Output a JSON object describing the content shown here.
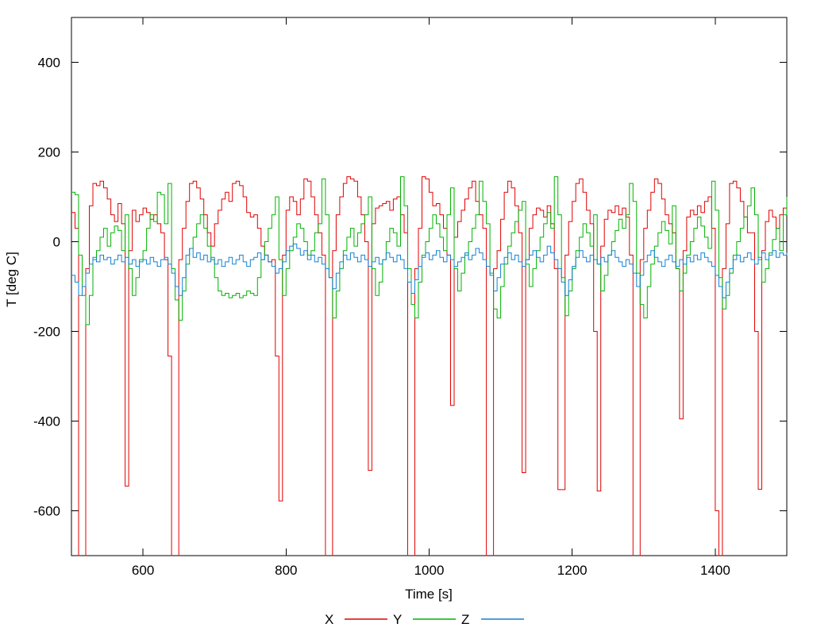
{
  "window": {
    "background": "#ffffff",
    "text_color": "#000000"
  },
  "chart_data": {
    "type": "line",
    "style": "steps",
    "title": "",
    "xlabel": "Time [s]",
    "ylabel": "T [deg C]",
    "grid": false,
    "legend_position": "bottom-center",
    "x_range": [
      500,
      1500
    ],
    "y_range": [
      -700,
      500
    ],
    "x_ticks": [
      600,
      800,
      1000,
      1200,
      1400
    ],
    "y_ticks": [
      400,
      200,
      0,
      -200,
      -400,
      -600
    ],
    "t_start": 500,
    "t_step": 5,
    "series": [
      {
        "name": "X",
        "color": "#e00000",
        "values": [
          65,
          30,
          -750,
          -750,
          -60,
          80,
          130,
          125,
          135,
          120,
          95,
          60,
          45,
          85,
          40,
          -545,
          -20,
          70,
          45,
          60,
          75,
          65,
          50,
          60,
          40,
          20,
          -40,
          -255,
          -750,
          -750,
          -40,
          30,
          90,
          130,
          135,
          120,
          95,
          60,
          20,
          -10,
          40,
          70,
          95,
          110,
          90,
          130,
          135,
          125,
          100,
          65,
          55,
          60,
          30,
          -10,
          -30,
          -45,
          -40,
          -255,
          -578,
          -30,
          70,
          100,
          90,
          60,
          95,
          140,
          135,
          100,
          60,
          20,
          -30,
          -750,
          -750,
          -20,
          60,
          100,
          130,
          145,
          140,
          135,
          100,
          60,
          0,
          -510,
          40,
          75,
          80,
          85,
          90,
          70,
          95,
          100,
          60,
          20,
          -750,
          -750,
          -60,
          30,
          145,
          140,
          110,
          80,
          85,
          60,
          30,
          -30,
          -365,
          10,
          45,
          70,
          95,
          120,
          135,
          90,
          60,
          30,
          -750,
          -750,
          -60,
          -20,
          50,
          110,
          135,
          120,
          80,
          20,
          -515,
          -40,
          30,
          60,
          75,
          70,
          55,
          80,
          40,
          -60,
          -553,
          -553,
          -30,
          45,
          90,
          130,
          140,
          110,
          70,
          40,
          -200,
          -556,
          -10,
          50,
          70,
          65,
          80,
          60,
          75,
          55,
          -30,
          -750,
          -750,
          -40,
          30,
          70,
          110,
          140,
          130,
          95,
          60,
          40,
          20,
          -60,
          -395,
          -20,
          55,
          70,
          60,
          80,
          65,
          90,
          100,
          30,
          -600,
          -730,
          -60,
          40,
          130,
          135,
          120,
          90,
          55,
          20,
          20,
          -200,
          -552,
          -20,
          45,
          70,
          55,
          30,
          60,
          75,
          75
        ]
      },
      {
        "name": "Y",
        "color": "#00b200",
        "values": [
          110,
          105,
          -30,
          -120,
          -185,
          -120,
          -40,
          -20,
          10,
          30,
          -10,
          20,
          35,
          25,
          -20,
          60,
          -60,
          -120,
          -80,
          -40,
          -20,
          30,
          60,
          45,
          110,
          105,
          40,
          130,
          -60,
          -130,
          -175,
          -110,
          -50,
          -15,
          10,
          40,
          60,
          30,
          -10,
          -40,
          -80,
          -110,
          -120,
          -115,
          -125,
          -120,
          -115,
          -125,
          -120,
          -110,
          -115,
          -120,
          -80,
          -40,
          0,
          30,
          60,
          100,
          -40,
          -120,
          -60,
          -20,
          10,
          40,
          30,
          0,
          -30,
          -20,
          20,
          40,
          140,
          60,
          -80,
          -170,
          -110,
          -60,
          -20,
          10,
          30,
          -10,
          20,
          40,
          60,
          100,
          -60,
          -120,
          -90,
          -40,
          0,
          30,
          20,
          -10,
          145,
          80,
          -60,
          -140,
          -170,
          -90,
          -30,
          0,
          30,
          60,
          40,
          10,
          -20,
          60,
          120,
          -60,
          -110,
          -70,
          -30,
          0,
          30,
          60,
          135,
          90,
          40,
          -70,
          -150,
          -170,
          -100,
          -50,
          -10,
          20,
          45,
          70,
          90,
          -50,
          -100,
          -60,
          -20,
          10,
          40,
          65,
          30,
          145,
          60,
          -80,
          -165,
          -110,
          -60,
          -20,
          10,
          40,
          20,
          -10,
          60,
          -50,
          -110,
          -75,
          -30,
          0,
          25,
          50,
          30,
          60,
          130,
          90,
          -70,
          -140,
          -170,
          -100,
          -50,
          -10,
          20,
          45,
          25,
          -5,
          80,
          -60,
          -110,
          -70,
          -30,
          0,
          30,
          55,
          35,
          10,
          -15,
          135,
          70,
          -80,
          -150,
          -120,
          -70,
          -30,
          0,
          30,
          55,
          80,
          120,
          60,
          -40,
          -90,
          -60,
          -25,
          5,
          30,
          -20,
          60,
          100
        ]
      },
      {
        "name": "Z",
        "color": "#1180d2",
        "values": [
          -75,
          -90,
          -120,
          -100,
          -70,
          -50,
          -35,
          -45,
          -30,
          -40,
          -35,
          -50,
          -40,
          -30,
          -45,
          -35,
          -50,
          -40,
          -55,
          -45,
          -40,
          -50,
          -35,
          -45,
          -55,
          -40,
          -35,
          -50,
          -70,
          -100,
          -120,
          -80,
          -30,
          -15,
          -35,
          -25,
          -40,
          -30,
          -45,
          -35,
          -50,
          -40,
          -55,
          -45,
          -35,
          -50,
          -40,
          -30,
          -45,
          -55,
          -40,
          -35,
          -25,
          -40,
          -30,
          -45,
          -55,
          -70,
          -60,
          -45,
          -20,
          -10,
          -5,
          -15,
          -30,
          -20,
          -40,
          -30,
          -45,
          -35,
          -50,
          -60,
          -80,
          -105,
          -70,
          -45,
          -30,
          -40,
          -25,
          -35,
          -45,
          -30,
          -40,
          -55,
          -45,
          -35,
          -50,
          -40,
          -25,
          -35,
          -45,
          -30,
          -40,
          -60,
          -90,
          -115,
          -85,
          -55,
          -35,
          -25,
          -40,
          -30,
          -20,
          -35,
          -45,
          -30,
          -40,
          -55,
          -45,
          -35,
          -25,
          -40,
          -30,
          -15,
          -25,
          -40,
          -55,
          -75,
          -110,
          -80,
          -50,
          -35,
          -25,
          -40,
          -30,
          -45,
          -55,
          -40,
          -30,
          -20,
          -35,
          -45,
          -30,
          -10,
          -25,
          -40,
          -60,
          -90,
          -120,
          -85,
          -55,
          -35,
          -20,
          -35,
          -45,
          -30,
          -40,
          -50,
          -35,
          -45,
          -30,
          -20,
          -35,
          -45,
          -55,
          -40,
          -50,
          -70,
          -100,
          -75,
          -45,
          -30,
          -20,
          -35,
          -45,
          -55,
          -40,
          -30,
          -45,
          -55,
          -40,
          -50,
          -35,
          -45,
          -30,
          -40,
          -25,
          -35,
          -45,
          -55,
          -75,
          -100,
          -125,
          -90,
          -60,
          -40,
          -30,
          -45,
          -35,
          -25,
          -40,
          -50,
          -35,
          -25,
          -40,
          -30,
          -20,
          -35,
          -25,
          -30,
          -25
        ]
      }
    ]
  }
}
